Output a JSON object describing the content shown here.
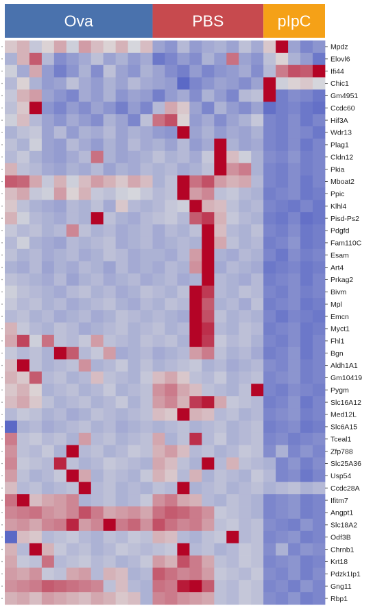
{
  "chart_data": {
    "type": "heatmap",
    "groups": [
      {
        "name": "Ova",
        "color": "#4a72ad",
        "columns": 12
      },
      {
        "name": "PBS",
        "color": "#c74a4e",
        "columns": 9
      },
      {
        "name": "pIpC",
        "color": "#f5a117",
        "columns": 5
      }
    ],
    "rows": [
      "Mpdz",
      "Elovl6",
      "Ifi44",
      "Chic1",
      "Gm4951",
      "Ccdc60",
      "Hif3A",
      "Wdr13",
      "Plag1",
      "Cldn12",
      "Pkia",
      "Mboat2",
      "Ppic",
      "Klhl4",
      "Pisd-Ps2",
      "Pdgfd",
      "Fam110C",
      "Esam",
      "Art4",
      "Prkag2",
      "Bivm",
      "Mpl",
      "Emcn",
      "Myct1",
      "Fhl1",
      "Bgn",
      "Aldh1A1",
      "Gm10419",
      "Pygm",
      "Slc16A12",
      "Med12L",
      "Slc6A15",
      "Tceal1",
      "Zfp788",
      "Slc25A36",
      "Usp54",
      "Ccdc28A",
      "Ifitm7",
      "Angpt1",
      "Slc18A2",
      "Odf3B",
      "Chrnb1",
      "Krt18",
      "Pdzk1Ip1",
      "Gng11",
      "Rbp1"
    ],
    "color_scale": {
      "low": "#3b4cc0",
      "mid": "#dddddd",
      "high": "#b40426",
      "min": -2,
      "max": 2
    },
    "values": [
      [
        0.2,
        0.4,
        -0.3,
        0.1,
        0.5,
        -0.2,
        0.6,
        0.3,
        0.1,
        0.4,
        -0.1,
        0.3,
        -0.8,
        -1,
        -0.5,
        -0.9,
        -0.7,
        -0.6,
        -0.8,
        -0.4,
        -0.7,
        0.2,
        2,
        -0.8,
        -1.2,
        -1
      ],
      [
        -0.6,
        0.4,
        1.2,
        -0.5,
        -1.1,
        -0.9,
        -0.7,
        -0.4,
        -0.8,
        -0.6,
        -0.9,
        -0.7,
        -1.4,
        -1.2,
        -0.9,
        -1.1,
        -0.6,
        -0.9,
        1,
        -0.8,
        -1,
        -0.4,
        0.1,
        -0.6,
        -0.9,
        -1.4
      ],
      [
        -0.2,
        -0.7,
        0.5,
        -0.9,
        -1.3,
        -1,
        -0.6,
        -1.1,
        -0.4,
        -0.8,
        -1,
        -0.6,
        -0.8,
        -1.1,
        -1.3,
        -0.9,
        -1.2,
        -1,
        -0.9,
        -0.7,
        -1.1,
        -0.5,
        0.9,
        1.3,
        1.2,
        2
      ],
      [
        -0.5,
        0.1,
        -0.6,
        -0.9,
        -0.8,
        -0.4,
        -0.7,
        -0.9,
        -0.6,
        -0.8,
        -0.5,
        -0.7,
        -0.8,
        -0.9,
        -1.6,
        -1.2,
        -1,
        -0.8,
        -0.9,
        -1.1,
        -0.8,
        2,
        -0.2,
        0.1,
        0.2,
        -0.1
      ],
      [
        -0.3,
        0.4,
        0.6,
        -0.8,
        -1,
        -1.2,
        -0.7,
        -0.9,
        -0.6,
        -1,
        -0.8,
        -0.9,
        -1.3,
        -0.9,
        -0.7,
        -1.1,
        -0.6,
        -0.9,
        -1.2,
        -0.5,
        -0.4,
        2,
        -1.3,
        -1.1,
        -1.2,
        -1.4
      ],
      [
        -0.4,
        0.2,
        2,
        -1,
        -1.2,
        -0.9,
        -1.1,
        -0.8,
        -1,
        -1.3,
        -0.9,
        -1.2,
        -0.5,
        0.5,
        0.2,
        -0.8,
        -1.2,
        -0.6,
        -0.9,
        -1.1,
        -0.8,
        -1.5,
        -1.3,
        -1.2,
        -1.4,
        -1.5
      ],
      [
        -0.2,
        0.3,
        -0.5,
        -0.8,
        -1,
        -0.7,
        -0.9,
        -1.1,
        -0.6,
        -0.8,
        -1.2,
        -0.4,
        1,
        1.3,
        0.1,
        -0.9,
        -0.7,
        -1.1,
        -0.8,
        -0.6,
        -0.3,
        -1.2,
        -1.3,
        -1.1,
        -1.4,
        -1.2
      ],
      [
        -0.6,
        -0.4,
        -0.3,
        -0.8,
        -0.5,
        -0.9,
        -0.6,
        -0.7,
        -0.5,
        -0.8,
        -0.6,
        -0.7,
        -0.9,
        -1,
        2,
        -0.8,
        -0.6,
        -0.9,
        -0.7,
        -0.8,
        -0.6,
        -1.2,
        -1.3,
        -1.1,
        -1.2,
        -1.4
      ],
      [
        -0.4,
        -0.6,
        -0.2,
        -0.8,
        -0.9,
        -0.5,
        -0.7,
        -0.9,
        -0.6,
        -0.8,
        -0.5,
        -0.7,
        -0.6,
        -0.8,
        -0.5,
        -0.9,
        -0.7,
        2,
        -0.6,
        -0.8,
        -0.7,
        -1.2,
        -1.3,
        -1.1,
        -1.4,
        -1.2
      ],
      [
        -0.5,
        -0.3,
        -0.6,
        -0.8,
        -0.9,
        -0.7,
        -0.5,
        1,
        -0.6,
        -0.8,
        -0.7,
        -0.6,
        -0.4,
        -0.6,
        -0.5,
        -0.7,
        -0.3,
        2,
        0.3,
        -0.2,
        -0.6,
        -1.1,
        -1.2,
        -1,
        -1.3,
        -1.2
      ],
      [
        0.4,
        -0.4,
        -0.5,
        -0.7,
        -0.8,
        -0.6,
        -0.7,
        -0.5,
        -0.8,
        -0.6,
        -0.7,
        -0.5,
        -0.6,
        -0.5,
        -0.7,
        -0.6,
        -0.4,
        2,
        0.7,
        0.9,
        -0.6,
        -1.2,
        -1.3,
        -1.1,
        -1.3,
        -1.2
      ],
      [
        1.2,
        1.1,
        0.5,
        -0.3,
        0.4,
        -0.2,
        0.3,
        0.6,
        0.4,
        0.2,
        0.5,
        0.3,
        -0.6,
        -0.4,
        2,
        1,
        1.3,
        0.6,
        0.4,
        0.5,
        -0.5,
        -1.2,
        -1.3,
        -1.1,
        -1.4,
        -1.2
      ],
      [
        0.3,
        0.5,
        -0.3,
        -0.2,
        0.6,
        0.1,
        0.4,
        -0.3,
        -0.4,
        -0.2,
        -0.1,
        -0.3,
        -0.5,
        -0.4,
        2,
        0.6,
        0.8,
        -0.4,
        -0.3,
        -0.5,
        -0.6,
        -1.3,
        -1.2,
        -1.1,
        -1.4,
        -1.3
      ],
      [
        0.2,
        -0.4,
        -0.6,
        -0.7,
        -0.8,
        -0.5,
        -0.6,
        -0.4,
        -0.7,
        0.2,
        -0.5,
        -0.6,
        -0.5,
        -0.3,
        -0.2,
        2,
        0.4,
        0.3,
        -0.4,
        -0.6,
        -0.5,
        -1.2,
        -1.3,
        -1.4,
        -1.2,
        -1.4
      ],
      [
        0.4,
        -0.2,
        -0.5,
        -0.6,
        -0.7,
        -0.5,
        -0.6,
        2,
        -0.4,
        -0.6,
        -0.7,
        -0.5,
        -0.4,
        -0.3,
        -0.5,
        1.2,
        1.5,
        0.4,
        -0.3,
        -0.5,
        -0.6,
        -1.3,
        -1.4,
        -1.2,
        -1.5,
        -1.4
      ],
      [
        -0.3,
        -0.5,
        -0.4,
        -0.6,
        -0.5,
        0.8,
        -0.4,
        -0.6,
        -0.5,
        -0.7,
        -0.6,
        -0.5,
        -0.7,
        -0.5,
        -0.6,
        -0.4,
        2,
        0.3,
        -0.5,
        -0.6,
        -0.4,
        -1.2,
        -1.3,
        -1.1,
        -1.4,
        -1.3
      ],
      [
        -0.5,
        -0.2,
        -0.6,
        -0.7,
        -0.8,
        -0.5,
        -0.6,
        -0.5,
        -0.4,
        -0.7,
        -0.6,
        -0.5,
        -0.7,
        -0.6,
        -0.5,
        -0.6,
        2,
        0.5,
        -0.4,
        -0.6,
        -0.5,
        -1.3,
        -1.2,
        -1,
        -1.4,
        -1.3
      ],
      [
        -0.4,
        -0.6,
        -0.5,
        -0.7,
        -0.6,
        -0.5,
        -0.7,
        -0.6,
        -0.4,
        -0.5,
        -0.7,
        -0.6,
        -0.6,
        -0.7,
        -0.5,
        0.6,
        2,
        -0.6,
        -0.7,
        -0.5,
        -0.6,
        -1.2,
        -1.4,
        -1.1,
        -1.3,
        -1.2
      ],
      [
        -0.6,
        -0.7,
        -0.5,
        -0.8,
        -0.6,
        -0.7,
        -0.5,
        -0.6,
        -0.8,
        -0.5,
        -0.7,
        -0.6,
        -0.7,
        -0.5,
        -0.6,
        0.7,
        2,
        -0.7,
        -0.5,
        -0.6,
        -0.7,
        -1.4,
        -1.3,
        -1.2,
        -1.4,
        -1.3
      ],
      [
        -0.4,
        -0.5,
        -0.6,
        -0.7,
        -0.5,
        -0.8,
        -0.6,
        -0.5,
        -0.7,
        -0.6,
        -0.5,
        -0.7,
        -0.6,
        -0.5,
        -0.7,
        -0.6,
        2,
        -0.5,
        -0.6,
        -0.7,
        -0.5,
        -1.3,
        -1.2,
        -1.1,
        -1.4,
        -1.2
      ],
      [
        -0.2,
        -0.4,
        -0.5,
        -0.6,
        -0.7,
        -0.5,
        -0.4,
        -0.6,
        -0.5,
        -0.7,
        -0.6,
        -0.4,
        -0.5,
        -0.6,
        -0.4,
        2,
        1.5,
        -0.5,
        -0.6,
        -0.4,
        -0.5,
        -1.2,
        -1.3,
        -1.1,
        -1.3,
        -1.2
      ],
      [
        -0.3,
        -0.5,
        -0.4,
        -0.6,
        -0.5,
        -0.7,
        -0.6,
        -0.5,
        -0.4,
        -0.6,
        -0.7,
        -0.5,
        -0.6,
        -0.4,
        -0.5,
        2,
        1.2,
        -0.6,
        -0.5,
        -0.7,
        -0.4,
        -1.3,
        -1.2,
        -1.1,
        -1.4,
        -1.3
      ],
      [
        -0.5,
        -0.4,
        -0.6,
        -0.5,
        -0.7,
        -0.6,
        -0.5,
        -0.7,
        -0.6,
        -0.4,
        -0.5,
        -0.6,
        -0.5,
        -0.6,
        -0.7,
        2,
        1.3,
        -0.4,
        -0.6,
        -0.5,
        -0.6,
        -1.2,
        -1.4,
        -1.2,
        -1.3,
        -1.4
      ],
      [
        0.4,
        -0.3,
        -0.5,
        -0.6,
        -0.4,
        -0.5,
        -0.7,
        -0.6,
        -0.5,
        -0.4,
        -0.6,
        -0.5,
        -0.4,
        -0.6,
        -0.5,
        2,
        1.6,
        -0.5,
        -0.6,
        -0.4,
        -0.5,
        -1.3,
        -1.2,
        -1.1,
        -1.4,
        -1.3
      ],
      [
        0.5,
        1.4,
        -0.2,
        1,
        -0.4,
        -0.5,
        -0.3,
        0.6,
        -0.4,
        -0.5,
        -0.6,
        -0.4,
        -0.5,
        -0.4,
        -0.6,
        2,
        1.5,
        -0.3,
        -0.5,
        -0.4,
        -0.6,
        -1.2,
        -1.3,
        -1.1,
        -1.4,
        -1.2
      ],
      [
        -0.3,
        -0.5,
        -0.4,
        -0.6,
        2,
        1.2,
        -0.5,
        -0.3,
        0.6,
        -0.7,
        -0.6,
        -0.5,
        -0.7,
        -0.6,
        -0.5,
        0.6,
        0.9,
        -0.4,
        -0.6,
        -0.5,
        -0.7,
        -1.3,
        -1.2,
        -1,
        -1.4,
        -1.2
      ],
      [
        0.3,
        2,
        -0.4,
        -0.6,
        -0.5,
        -0.4,
        0.7,
        -0.6,
        -0.5,
        -0.3,
        -0.6,
        -0.4,
        -0.6,
        -0.5,
        -0.4,
        -0.3,
        -0.6,
        -0.5,
        -0.7,
        -0.6,
        -0.5,
        -1.1,
        -1.2,
        -1,
        -1.3,
        -1.2
      ],
      [
        0.4,
        0.2,
        1.2,
        -0.5,
        -0.4,
        -0.6,
        -0.5,
        0.3,
        -0.4,
        -0.5,
        -0.6,
        -0.3,
        0.3,
        0.5,
        0.2,
        -0.4,
        -0.5,
        -0.3,
        -0.6,
        -0.5,
        -0.4,
        -1.2,
        -1.1,
        -1,
        -1.3,
        -1.2
      ],
      [
        0.2,
        0.4,
        0.1,
        -0.6,
        -0.5,
        -0.4,
        -0.6,
        -0.5,
        -0.3,
        -0.6,
        -0.5,
        -0.4,
        0.7,
        0.9,
        0.5,
        0.3,
        -0.4,
        -0.5,
        -0.6,
        -0.4,
        2,
        -1.2,
        -1.3,
        -1.1,
        -1.2,
        -1.3
      ],
      [
        0.3,
        0.5,
        0.2,
        -0.4,
        -0.6,
        -0.5,
        -0.4,
        -0.6,
        -0.5,
        -0.3,
        -0.6,
        -0.4,
        0.6,
        0.8,
        0.4,
        1.5,
        1.8,
        0.5,
        -0.3,
        -0.4,
        -0.5,
        -1.3,
        -1.2,
        -1,
        -1.4,
        -1.2
      ],
      [
        -0.5,
        -0.3,
        -0.4,
        -0.6,
        -0.5,
        -0.7,
        -0.6,
        -0.4,
        -0.5,
        -0.6,
        -0.5,
        -0.4,
        0.3,
        0.2,
        2,
        0.4,
        0.3,
        -0.5,
        -0.4,
        -0.6,
        -0.5,
        -1.2,
        -1.1,
        -1,
        -1.3,
        -1.2
      ],
      [
        -1.6,
        -0.6,
        -0.5,
        -0.7,
        -0.6,
        -0.5,
        -0.4,
        -0.6,
        -0.5,
        -0.7,
        -0.6,
        -0.5,
        -0.6,
        -0.5,
        -0.4,
        -0.6,
        -0.5,
        -0.4,
        -0.6,
        -0.5,
        -0.4,
        -1.3,
        -1.2,
        -1.1,
        -1.4,
        -1.3
      ],
      [
        0.9,
        -0.4,
        -0.3,
        -0.5,
        -0.4,
        -0.6,
        0.6,
        -0.5,
        -0.4,
        -0.6,
        -0.5,
        -0.4,
        0.5,
        -0.6,
        -0.4,
        1.6,
        -0.5,
        -0.3,
        -0.6,
        -0.5,
        -0.4,
        -1.2,
        -1.1,
        -1.3,
        -1.2,
        -1.1
      ],
      [
        0.7,
        -0.4,
        -0.5,
        -0.3,
        -0.6,
        2,
        -0.5,
        -0.4,
        -0.6,
        -0.5,
        -0.3,
        -0.4,
        0.4,
        0.6,
        0.3,
        -0.5,
        -0.4,
        -0.6,
        -0.5,
        -0.3,
        -0.4,
        -1.1,
        -0.6,
        -1.2,
        -1,
        -1.2
      ],
      [
        0.8,
        -0.3,
        -0.4,
        -0.5,
        1.7,
        -0.4,
        -0.6,
        -0.5,
        -0.3,
        -0.4,
        -0.5,
        -0.6,
        0.5,
        0.3,
        -0.4,
        -0.6,
        2,
        -0.5,
        0.4,
        -0.4,
        -0.5,
        -0.6,
        -1.2,
        -1,
        -1.3,
        -1.1
      ],
      [
        0.6,
        -0.4,
        -0.6,
        -0.5,
        -0.3,
        2,
        0.5,
        -0.6,
        -0.4,
        -0.5,
        -0.6,
        -0.3,
        0.4,
        0.2,
        -0.5,
        0.4,
        -0.6,
        -0.4,
        -0.5,
        -0.6,
        -0.3,
        -0.5,
        -1.2,
        -1.1,
        -1.4,
        -1.2
      ],
      [
        0.3,
        -0.5,
        -0.4,
        -0.6,
        -0.5,
        -0.4,
        2,
        -0.5,
        -0.4,
        -0.6,
        -0.5,
        -0.6,
        -0.4,
        -0.5,
        2,
        -0.6,
        -0.5,
        -0.4,
        -0.6,
        -0.5,
        -0.4,
        -0.6,
        -0.5,
        -0.4,
        -0.6,
        -0.5
      ],
      [
        1,
        2,
        0.3,
        0.5,
        0.6,
        0.8,
        -0.6,
        -0.5,
        -0.4,
        -0.6,
        -0.5,
        -0.3,
        0.7,
        0.9,
        0.5,
        0.4,
        -0.5,
        -0.6,
        -0.4,
        -0.5,
        -0.6,
        -1.2,
        -1.1,
        -1,
        -1.3,
        -1.2
      ],
      [
        0.8,
        0.9,
        1,
        0.7,
        0.6,
        0.8,
        1.3,
        0.9,
        0.5,
        0.6,
        0.7,
        0.5,
        1,
        1.2,
        1.1,
        0.9,
        0.7,
        -0.3,
        -0.4,
        -0.5,
        -0.6,
        -1.2,
        -1.1,
        -1,
        -1.3,
        -1.2
      ],
      [
        0.6,
        0.7,
        0.5,
        0.8,
        0.9,
        1.7,
        0.6,
        0.8,
        2,
        0.9,
        1.1,
        0.7,
        1.3,
        1,
        0.8,
        0.9,
        0.6,
        -0.4,
        -0.3,
        -0.5,
        -0.4,
        -1.1,
        -1.2,
        -1.3,
        -1,
        -1.2
      ],
      [
        -1.6,
        0.3,
        0.2,
        -0.5,
        -0.4,
        -0.3,
        -0.5,
        -0.6,
        -0.4,
        -0.5,
        -0.3,
        -0.4,
        0.4,
        0.3,
        -0.5,
        -0.6,
        -0.4,
        -0.3,
        2,
        -0.5,
        -0.4,
        -1.2,
        -1.1,
        -1,
        -1.3,
        -1.2
      ],
      [
        0.4,
        -0.5,
        2,
        0.4,
        -0.3,
        -0.5,
        -0.4,
        -0.6,
        -0.5,
        -0.3,
        -0.4,
        -0.5,
        -0.4,
        -0.3,
        2,
        -0.5,
        -0.4,
        -0.6,
        -0.5,
        -0.3,
        -0.4,
        -1.1,
        -0.6,
        -1.2,
        -1,
        -1.1
      ],
      [
        0.5,
        -0.3,
        -0.4,
        1,
        -0.5,
        -0.4,
        -0.3,
        -0.5,
        -0.4,
        -0.6,
        -0.5,
        -0.3,
        0.6,
        0.4,
        1.3,
        0.9,
        0.5,
        -0.4,
        -0.5,
        -0.3,
        -0.4,
        -1.2,
        -1.1,
        -1,
        -1.3,
        -1.2
      ],
      [
        0.6,
        0.5,
        0.7,
        -0.3,
        -0.4,
        0.5,
        0.6,
        -0.5,
        0.4,
        0.3,
        -0.6,
        -0.5,
        1.2,
        1,
        0.8,
        0.9,
        0.6,
        -0.3,
        -0.4,
        -0.5,
        -0.3,
        -1.1,
        -1.2,
        -1,
        -1.3,
        -1.1
      ],
      [
        0.7,
        0.8,
        0.9,
        1.2,
        1.1,
        1,
        0.9,
        0.8,
        -0.4,
        0.3,
        -0.5,
        -0.6,
        1,
        0.9,
        1.8,
        2,
        1.2,
        -0.4,
        -0.5,
        -0.3,
        -0.4,
        -1.2,
        -1.1,
        -1.3,
        -1,
        -1.2
      ],
      [
        0.4,
        0.5,
        0.3,
        0.6,
        0.5,
        0.4,
        0.3,
        0.5,
        0.4,
        0.2,
        0.3,
        -0.6,
        0.8,
        0.9,
        0.7,
        0.6,
        0.5,
        -0.4,
        -0.5,
        -0.3,
        -0.4,
        -1.1,
        -1.2,
        -1,
        -1.3,
        -1.2
      ]
    ]
  }
}
